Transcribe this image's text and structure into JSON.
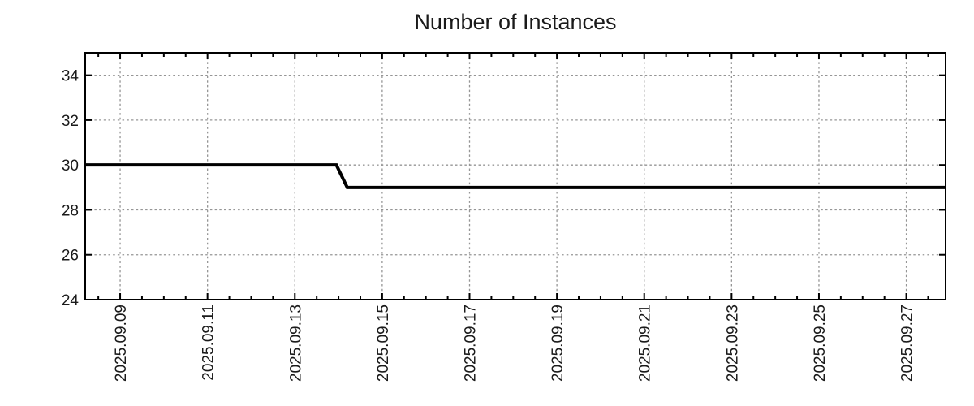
{
  "chart_data": {
    "type": "line",
    "title": "Number of Instances",
    "x_axis": {
      "tick_labels": [
        "2025.09.09",
        "2025.09.11",
        "2025.09.13",
        "2025.09.15",
        "2025.09.17",
        "2025.09.19",
        "2025.09.21",
        "2025.09.23",
        "2025.09.25",
        "2025.09.27"
      ],
      "tick_days": [
        1,
        3,
        5,
        7,
        9,
        11,
        13,
        15,
        17,
        19
      ],
      "day_zero_date": "2025-09-08",
      "xlim_days": [
        0.2,
        19.9
      ],
      "minor_tick_step_days": 0.5,
      "label_rotation_deg": -90
    },
    "y_axis": {
      "ticks": [
        24,
        26,
        28,
        30,
        32,
        34
      ],
      "ylim": [
        24,
        35.0
      ]
    },
    "grid": {
      "show": true,
      "style": "dotted"
    },
    "legend": {
      "show": false
    },
    "series": [
      {
        "name": "instances",
        "points": [
          {
            "day": 0.2,
            "date": "2025-09-08",
            "value": 30
          },
          {
            "day": 5.95,
            "date": "2025-09-13 ~23:00",
            "value": 30
          },
          {
            "day": 6.2,
            "date": "2025-09-14 ~05:00",
            "value": 29
          },
          {
            "day": 19.9,
            "date": "2025-09-27",
            "value": 29
          }
        ]
      }
    ],
    "colors": {
      "line": "#000000",
      "grid": "#959595",
      "axis": "#000000",
      "text": "#1a1a1a",
      "background": "#ffffff"
    }
  }
}
